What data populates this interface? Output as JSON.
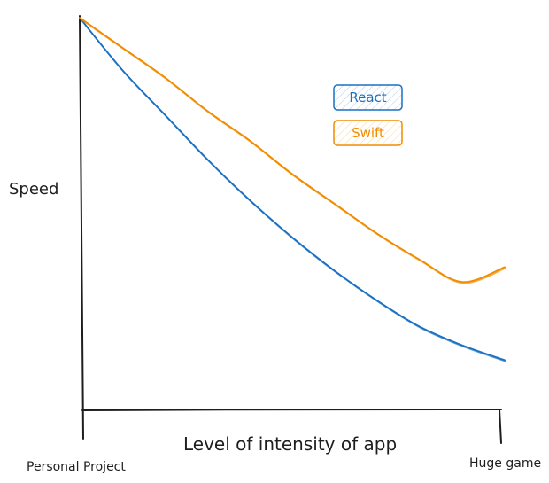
{
  "chart_data": {
    "type": "line",
    "title": "",
    "xlabel": "Level of intensity of app",
    "ylabel": "Speed",
    "x_tick_labels": [
      "Personal Project",
      "Huge game"
    ],
    "xlim": [
      0,
      1
    ],
    "ylim": [
      0,
      1
    ],
    "grid": false,
    "legend_position": "top-right",
    "series": [
      {
        "name": "React",
        "color": "#1971c2",
        "x": [
          0,
          0.1,
          0.2,
          0.3,
          0.4,
          0.5,
          0.6,
          0.7,
          0.8,
          0.9,
          1.0
        ],
        "y": [
          1.0,
          0.86,
          0.74,
          0.62,
          0.51,
          0.41,
          0.32,
          0.24,
          0.17,
          0.12,
          0.08
        ]
      },
      {
        "name": "Swift",
        "color": "#f08c00",
        "x": [
          0,
          0.1,
          0.2,
          0.3,
          0.4,
          0.5,
          0.6,
          0.7,
          0.8,
          0.9,
          1.0
        ],
        "y": [
          1.0,
          0.92,
          0.84,
          0.75,
          0.67,
          0.58,
          0.5,
          0.42,
          0.35,
          0.29,
          0.33
        ]
      }
    ]
  }
}
